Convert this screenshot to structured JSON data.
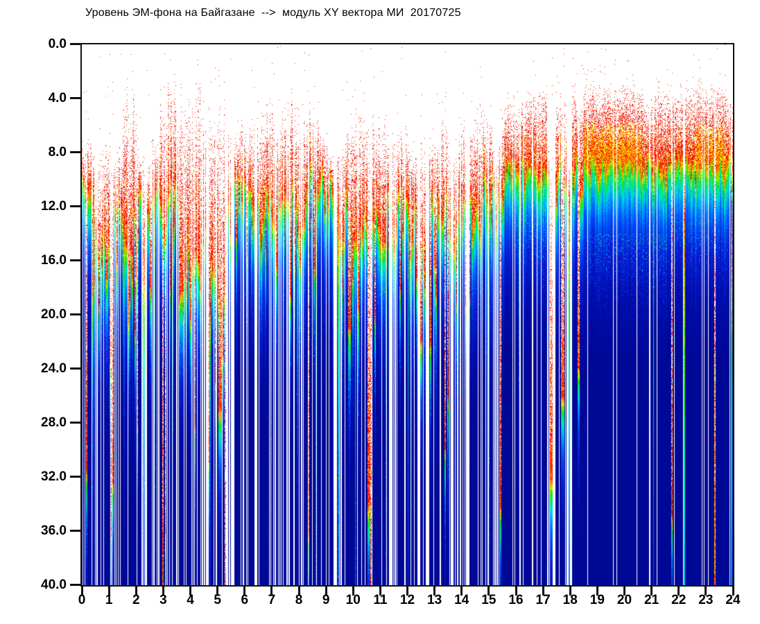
{
  "title": "Уровень ЭМ-фона на Байгазане  -->  модуль XY вектора МИ  20170725",
  "colors": {
    "background": "#ffffff",
    "axis": "#101010",
    "label": "#000000"
  },
  "chart_data": {
    "type": "heatmap",
    "subtype": "spectrogram",
    "title": "Уровень ЭМ-фона на Байгазане  -->  модуль XY вектора МИ  20170725",
    "station": "Байгазан",
    "quantity": "модуль XY вектора МИ",
    "date": "20170725",
    "xlabel": "",
    "ylabel": "",
    "x_axis": {
      "range": [
        0,
        24
      ],
      "ticks": [
        "0",
        "1",
        "2",
        "3",
        "4",
        "5",
        "6",
        "7",
        "8",
        "9",
        "10",
        "11",
        "12",
        "13",
        "14",
        "15",
        "16",
        "17",
        "18",
        "19",
        "20",
        "21",
        "22",
        "23",
        "24"
      ]
    },
    "y_axis": {
      "range": [
        0,
        40
      ],
      "inverted": false,
      "ticks": [
        "0.0",
        "4.0",
        "8.0",
        "12.0",
        "16.0",
        "20.0",
        "24.0",
        "28.0",
        "32.0",
        "36.0",
        "40.0"
      ]
    },
    "legend": "none",
    "grid": false,
    "palette_stops": [
      [
        0.0,
        255,
        50,
        0
      ],
      [
        0.3,
        255,
        170,
        0
      ],
      [
        0.62,
        230,
        255,
        0
      ],
      [
        1.0,
        30,
        215,
        0
      ],
      [
        1.6,
        0,
        235,
        130
      ],
      [
        2.2,
        0,
        222,
        222
      ],
      [
        3.1,
        0,
        150,
        255
      ],
      [
        4.4,
        0,
        80,
        248
      ],
      [
        6.5,
        8,
        30,
        212
      ],
      [
        10.0,
        0,
        12,
        170
      ],
      [
        14.0,
        0,
        8,
        150
      ]
    ],
    "envelope": {
      "reds": [
        [
          240,
          20,
          8
        ],
        [
          255,
          0,
          0
        ],
        [
          250,
          60,
          0
        ],
        [
          228,
          30,
          20
        ]
      ],
      "warm": [
        [
          255,
          150,
          0
        ],
        [
          255,
          210,
          0
        ],
        [
          255,
          255,
          0
        ]
      ],
      "segments": [
        {
          "a": 0.0,
          "b": 0.38,
          "T": 7.2,
          "L": 10,
          "j": 3,
          "v": 8,
          "d": 0.1
        },
        {
          "a": 0.38,
          "b": 0.82,
          "T": 8.5,
          "L": 13,
          "j": 4,
          "v": 9,
          "d": 0.08
        },
        {
          "a": 0.82,
          "b": 1.16,
          "T": 7.5,
          "L": 12,
          "j": 4,
          "v": 10,
          "d": 0.08
        },
        {
          "a": 1.16,
          "b": 1.34,
          "T": 8,
          "L": 12,
          "j": 3,
          "v": 8,
          "k": 0.35
        },
        {
          "a": 1.34,
          "b": 1.5,
          "T": 7.5,
          "L": 11,
          "j": 3,
          "v": 6
        },
        {
          "a": 1.5,
          "b": 2.05,
          "T": 3.2,
          "L": 13,
          "j": 4,
          "v": 9,
          "d": 0.08
        },
        {
          "a": 2.05,
          "b": 2.32,
          "T": 7.5,
          "L": 11,
          "j": 3,
          "v": 6
        },
        {
          "a": 2.32,
          "b": 2.46,
          "T": 8,
          "L": 11,
          "j": 3,
          "v": 6,
          "k": 0.3
        },
        {
          "a": 2.46,
          "b": 2.74,
          "T": 6.5,
          "L": 12,
          "j": 4,
          "v": 8
        },
        {
          "a": 2.74,
          "b": 2.88,
          "T": 7,
          "L": 11,
          "j": 3,
          "v": 6,
          "k": 0.3
        },
        {
          "a": 2.88,
          "b": 3.46,
          "T": 2.8,
          "L": 11,
          "j": 3,
          "v": 9,
          "d": 0.09
        },
        {
          "a": 3.46,
          "b": 3.56,
          "T": 4,
          "L": 11,
          "j": 3,
          "v": 8,
          "k": 0.3
        },
        {
          "a": 3.56,
          "b": 4.04,
          "T": 2.9,
          "L": 15,
          "j": 5,
          "v": 10,
          "d": 0.1
        },
        {
          "a": 4.04,
          "b": 4.4,
          "T": 2.7,
          "L": 16,
          "j": 5,
          "v": 10,
          "d": 0.1
        },
        {
          "a": 4.4,
          "b": 4.66,
          "T": 4,
          "L": 12,
          "j": 4,
          "v": 8,
          "k": 0.25
        },
        {
          "a": 4.66,
          "b": 5.02,
          "T": 3.4,
          "L": 15,
          "j": 5,
          "v": 10,
          "d": 0.08
        },
        {
          "a": 5.02,
          "b": 5.3,
          "T": 3.4,
          "L": 21,
          "j": 6,
          "v": 12,
          "d": 0.12
        },
        {
          "a": 5.3,
          "b": 5.58,
          "T": 6,
          "L": 12,
          "j": 4,
          "v": 8,
          "k": 0.2
        },
        {
          "a": 5.58,
          "b": 6.32,
          "T": 5.6,
          "L": 10.5,
          "j": 3,
          "v": 6,
          "d": 0.06
        },
        {
          "a": 6.32,
          "b": 6.54,
          "T": 5.5,
          "L": 10,
          "j": 3,
          "v": 6,
          "k": 0.3
        },
        {
          "a": 6.54,
          "b": 7.26,
          "T": 4.6,
          "L": 11,
          "j": 3.5,
          "v": 7,
          "d": 0.07
        },
        {
          "a": 7.26,
          "b": 7.86,
          "T": 4.2,
          "L": 12,
          "j": 4,
          "v": 7,
          "d": 0.07
        },
        {
          "a": 7.86,
          "b": 8.36,
          "T": 5.2,
          "L": 11,
          "j": 3,
          "v": 6,
          "d": 0.06
        },
        {
          "a": 8.36,
          "b": 8.72,
          "T": 4.5,
          "L": 10,
          "j": 3,
          "v": 6
        },
        {
          "a": 8.72,
          "b": 9.3,
          "T": 7.2,
          "L": 9.6,
          "j": 2.5,
          "v": 5,
          "sp": 0.3
        },
        {
          "a": 9.3,
          "b": 9.56,
          "T": 7,
          "L": 13,
          "j": 4,
          "v": 12,
          "k": 0.25
        },
        {
          "a": 9.56,
          "b": 9.92,
          "T": 6.3,
          "L": 11,
          "j": 4,
          "v": 8
        },
        {
          "a": 9.92,
          "b": 11.22,
          "T": 4.8,
          "L": 13,
          "j": 3.5,
          "v": 6,
          "sp": 0.07,
          "d": 0.07
        },
        {
          "a": 11.22,
          "b": 12.3,
          "T": 6.5,
          "L": 10.5,
          "j": 3,
          "v": 8,
          "sp": 0.25
        },
        {
          "a": 12.3,
          "b": 12.8,
          "T": 5.2,
          "L": 15,
          "j": 6,
          "v": 10,
          "k": 0.45
        },
        {
          "a": 12.8,
          "b": 13.54,
          "T": 6.3,
          "L": 11,
          "j": 3.5,
          "v": 7,
          "d": 0.07
        },
        {
          "a": 13.54,
          "b": 14.3,
          "T": 6,
          "L": 11,
          "j": 4,
          "v": 9,
          "k": 0.45
        },
        {
          "a": 14.3,
          "b": 14.94,
          "T": 4.9,
          "L": 9.8,
          "j": 3,
          "v": 5
        },
        {
          "a": 14.94,
          "b": 15.56,
          "T": 6,
          "L": 9.5,
          "j": 3,
          "v": 5,
          "k": 0.5
        },
        {
          "a": 15.56,
          "b": 16.32,
          "T": 4.2,
          "L": 8.5,
          "j": 2,
          "v": 3,
          "sp": 0.05
        },
        {
          "a": 16.32,
          "b": 17.14,
          "T": 2.8,
          "L": 8.4,
          "j": 1.5,
          "v": 2,
          "d": 0.02,
          "sp": 0.03
        },
        {
          "a": 17.14,
          "b": 17.46,
          "T": 6,
          "L": 10,
          "j": 3,
          "v": 8,
          "k": 0.15
        },
        {
          "a": 17.46,
          "b": 17.86,
          "T": 3,
          "L": 8.6,
          "j": 2,
          "v": 4,
          "d": 0.03,
          "sp": 0.06
        },
        {
          "a": 17.86,
          "b": 18.06,
          "T": 5,
          "L": 10,
          "j": 3,
          "v": 6,
          "k": 0.2
        },
        {
          "a": 18.06,
          "b": 18.46,
          "T": 2.8,
          "L": 8.4,
          "j": 1.5,
          "v": 3,
          "d": 0.03,
          "sp": 0.03
        },
        {
          "a": 18.46,
          "b": 20.64,
          "T": 2.5,
          "L": 8.3,
          "j": 1.2,
          "v": 1.5,
          "h": 1,
          "d": 0.012,
          "sp": 0.015
        },
        {
          "a": 20.64,
          "b": 22.62,
          "T": 3.0,
          "L": 8.3,
          "j": 1.4,
          "v": 1.5,
          "d": 0.012,
          "sp": 0.02
        },
        {
          "a": 22.62,
          "b": 23.72,
          "T": 2.5,
          "L": 8.3,
          "j": 1.2,
          "v": 1.5,
          "h": 1,
          "d": 0.012,
          "sp": 0.015
        },
        {
          "a": 23.72,
          "b": 24.01,
          "T": 3.4,
          "L": 8.4,
          "j": 1.5,
          "v": 2,
          "d": 0.01,
          "sp": 0.04
        }
      ],
      "spikes": [
        {
          "t": 5.08,
          "w": 0.07,
          "T": 3.2,
          "L": 27
        },
        {
          "t": 5.2,
          "w": 0.03,
          "T": 3.5,
          "L": 23
        },
        {
          "t": 8.62,
          "w": 0.018,
          "T": 6,
          "L": 11,
          "g": 5
        },
        {
          "t": 9.44,
          "w": 0.018,
          "T": 7,
          "L": 12,
          "g": 5
        },
        {
          "t": 9.86,
          "w": 0.05,
          "T": 5,
          "L": 21
        },
        {
          "t": 10.08,
          "w": 0.015,
          "T": 6,
          "L": 12,
          "g": 6
        },
        {
          "t": 10.56,
          "w": 0.05,
          "T": 4.8,
          "L": 34
        },
        {
          "t": 10.64,
          "w": 0.025,
          "T": 4.8,
          "L": 44
        },
        {
          "t": 12.02,
          "w": 0.015,
          "T": 6,
          "L": 12,
          "g": 5
        },
        {
          "t": 12.5,
          "w": 0.04,
          "T": 5,
          "L": 22
        },
        {
          "t": 12.64,
          "w": 0.03,
          "T": 6,
          "L": 18
        },
        {
          "t": 13.3,
          "w": 0.04,
          "T": 4,
          "L": 13
        },
        {
          "t": 13.38,
          "w": 0.03,
          "T": 5,
          "L": 30
        },
        {
          "t": 13.48,
          "w": 0.02,
          "T": 6,
          "L": 26
        },
        {
          "t": 15.0,
          "w": 0.015,
          "T": 6,
          "L": 11,
          "g": 5
        },
        {
          "t": 15.42,
          "w": 0.02,
          "T": 6,
          "L": 34
        },
        {
          "t": 17.28,
          "w": 0.05,
          "T": 7,
          "L": 32
        },
        {
          "t": 17.72,
          "w": 0.06,
          "T": 3,
          "L": 26
        },
        {
          "t": 17.95,
          "w": 0.022,
          "T": 8.5,
          "L": 12,
          "g": 8
        },
        {
          "t": 18.3,
          "w": 0.04,
          "T": 3,
          "L": 24
        },
        {
          "t": 21.06,
          "w": 0.02,
          "T": 8.3,
          "L": 12,
          "g": 6
        },
        {
          "t": 22.2,
          "w": 0.02,
          "T": 8.3,
          "L": 13,
          "g": 10
        },
        {
          "t": 23.32,
          "w": 0.022,
          "T": 2.5,
          "L": 40
        },
        {
          "t": 23.93,
          "w": 0.02,
          "T": 8.3,
          "L": 12,
          "g": 8
        }
      ],
      "gap_lines": [
        0.55,
        1.05,
        2.2,
        3.1,
        3.75,
        4.85,
        6.05,
        6.9,
        7.55,
        8.1,
        9.1,
        10.15,
        10.42,
        11.05,
        11.9,
        12.12,
        13.2,
        13.95,
        14.7,
        15.3,
        16.14,
        16.6,
        16.92,
        20.92,
        21.18,
        22.16,
        23.88
      ],
      "patches": [
        {
          "a": 0.0,
          "b": 15.56,
          "d0": 18,
          "d1": 40,
          "amp": 3.0,
          "p": 0.09
        },
        {
          "a": 8.0,
          "b": 9.05,
          "d0": 20,
          "d1": 40,
          "amp": 4,
          "p": 0.14
        },
        {
          "a": 9.3,
          "b": 10.3,
          "d0": 20,
          "d1": 40,
          "amp": 4,
          "p": 0.15
        },
        {
          "a": 12.6,
          "b": 13.6,
          "d0": 22,
          "d1": 40,
          "amp": 4,
          "p": 0.12
        },
        {
          "a": 15.9,
          "b": 17.1,
          "d0": 11,
          "d1": 26,
          "amp": 4,
          "p": 0.12
        },
        {
          "a": 16.3,
          "b": 16.62,
          "d0": 24,
          "d1": 34,
          "amp": 5,
          "p": 0.1
        },
        {
          "a": 18.55,
          "b": 21.6,
          "d0": 14,
          "d1": 27,
          "amp": 5,
          "p": 0.15
        },
        {
          "a": 21.8,
          "b": 23.8,
          "d0": 13,
          "d1": 22,
          "amp": 4,
          "p": 0.09
        }
      ]
    }
  }
}
